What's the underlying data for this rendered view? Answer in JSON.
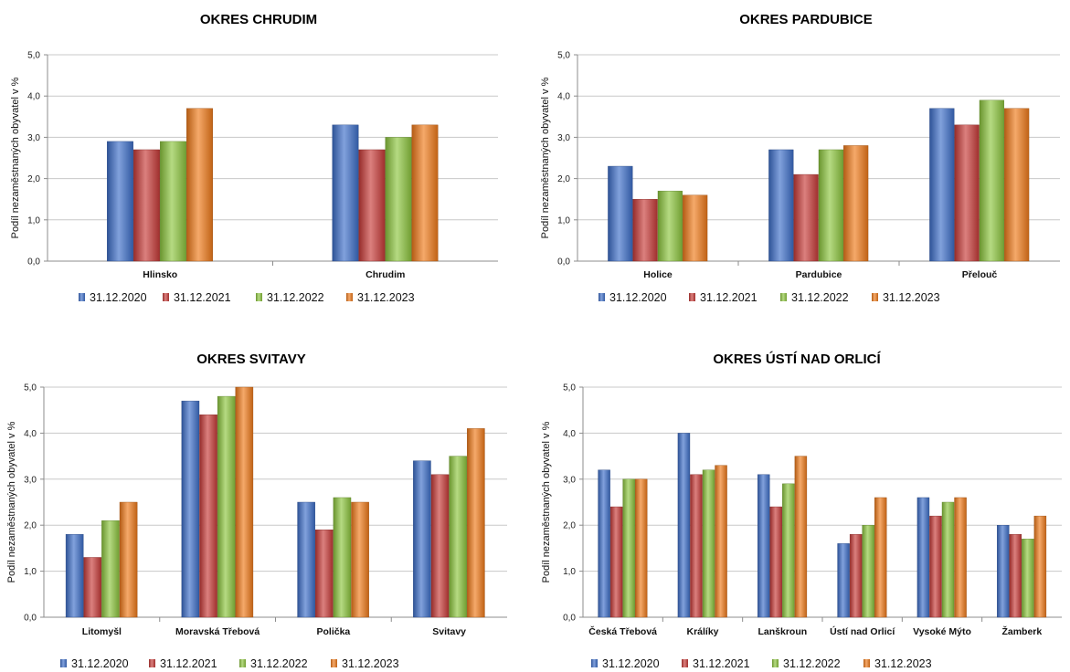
{
  "chart_data": [
    {
      "type": "bar",
      "title": "OKRES CHRUDIM",
      "ylabel": "Podíl nezaměstnaných obyvatel v %",
      "ylim": [
        0,
        5
      ],
      "yticks": [
        "0,0",
        "1,0",
        "2,0",
        "3,0",
        "4,0",
        "5,0"
      ],
      "categories": [
        "Hlinsko",
        "Chrudim"
      ],
      "series": [
        {
          "name": "31.12.2020",
          "values": [
            2.9,
            3.3
          ]
        },
        {
          "name": "31.12.2021",
          "values": [
            2.7,
            2.7
          ]
        },
        {
          "name": "31.12.2022",
          "values": [
            2.9,
            3.0
          ]
        },
        {
          "name": "31.12.2023",
          "values": [
            3.7,
            3.3
          ]
        }
      ],
      "grid": true,
      "legend": "bottom"
    },
    {
      "type": "bar",
      "title": "OKRES PARDUBICE",
      "ylabel": "Podíl nezaměstnaných obyvatel v %",
      "ylim": [
        0,
        5
      ],
      "yticks": [
        "0,0",
        "1,0",
        "2,0",
        "3,0",
        "4,0",
        "5,0"
      ],
      "categories": [
        "Holice",
        "Pardubice",
        "Přelouč"
      ],
      "series": [
        {
          "name": "31.12.2020",
          "values": [
            2.3,
            2.7,
            3.7
          ]
        },
        {
          "name": "31.12.2021",
          "values": [
            1.5,
            2.1,
            3.3
          ]
        },
        {
          "name": "31.12.2022",
          "values": [
            1.7,
            2.7,
            3.9
          ]
        },
        {
          "name": "31.12.2023",
          "values": [
            1.6,
            2.8,
            3.7
          ]
        }
      ],
      "grid": true,
      "legend": "bottom"
    },
    {
      "type": "bar",
      "title": "OKRES SVITAVY",
      "ylabel": "Podíl nezaměstnaných obyvatel v %",
      "ylim": [
        0,
        5
      ],
      "yticks": [
        "0,0",
        "1,0",
        "2,0",
        "3,0",
        "4,0",
        "5,0"
      ],
      "categories": [
        "Litomyšl",
        "Moravská Třebová",
        "Polička",
        "Svitavy"
      ],
      "series": [
        {
          "name": "31.12.2020",
          "values": [
            1.8,
            4.7,
            2.5,
            3.4
          ]
        },
        {
          "name": "31.12.2021",
          "values": [
            1.3,
            4.4,
            1.9,
            3.1
          ]
        },
        {
          "name": "31.12.2022",
          "values": [
            2.1,
            4.8,
            2.6,
            3.5
          ]
        },
        {
          "name": "31.12.2023",
          "values": [
            2.5,
            5.0,
            2.5,
            4.1
          ]
        }
      ],
      "grid": true,
      "legend": "bottom"
    },
    {
      "type": "bar",
      "title": "OKRES ÚSTÍ NAD ORLICÍ",
      "ylabel": "Podíl nezaměstnaných obyvatel v %",
      "ylim": [
        0,
        5
      ],
      "yticks": [
        "0,0",
        "1,0",
        "2,0",
        "3,0",
        "4,0",
        "5,0"
      ],
      "categories": [
        "Česká Třebová",
        "Králíky",
        "Lanškroun",
        "Ústí nad Orlicí",
        "Vysoké Mýto",
        "Žamberk"
      ],
      "series": [
        {
          "name": "31.12.2020",
          "values": [
            3.2,
            4.0,
            3.1,
            1.6,
            2.6,
            2.0
          ]
        },
        {
          "name": "31.12.2021",
          "values": [
            2.4,
            3.1,
            2.4,
            1.8,
            2.2,
            1.8
          ]
        },
        {
          "name": "31.12.2022",
          "values": [
            3.0,
            3.2,
            2.9,
            2.0,
            2.5,
            1.7
          ]
        },
        {
          "name": "31.12.2023",
          "values": [
            3.0,
            3.3,
            3.5,
            2.6,
            2.6,
            2.2
          ]
        }
      ],
      "grid": true,
      "legend": "bottom"
    }
  ],
  "colors": {
    "series": [
      "#3d6fc9",
      "#c83b38",
      "#8dc63f",
      "#f07a1a"
    ],
    "grid": "#c8c8c8",
    "axis": "#8c8c8c"
  }
}
